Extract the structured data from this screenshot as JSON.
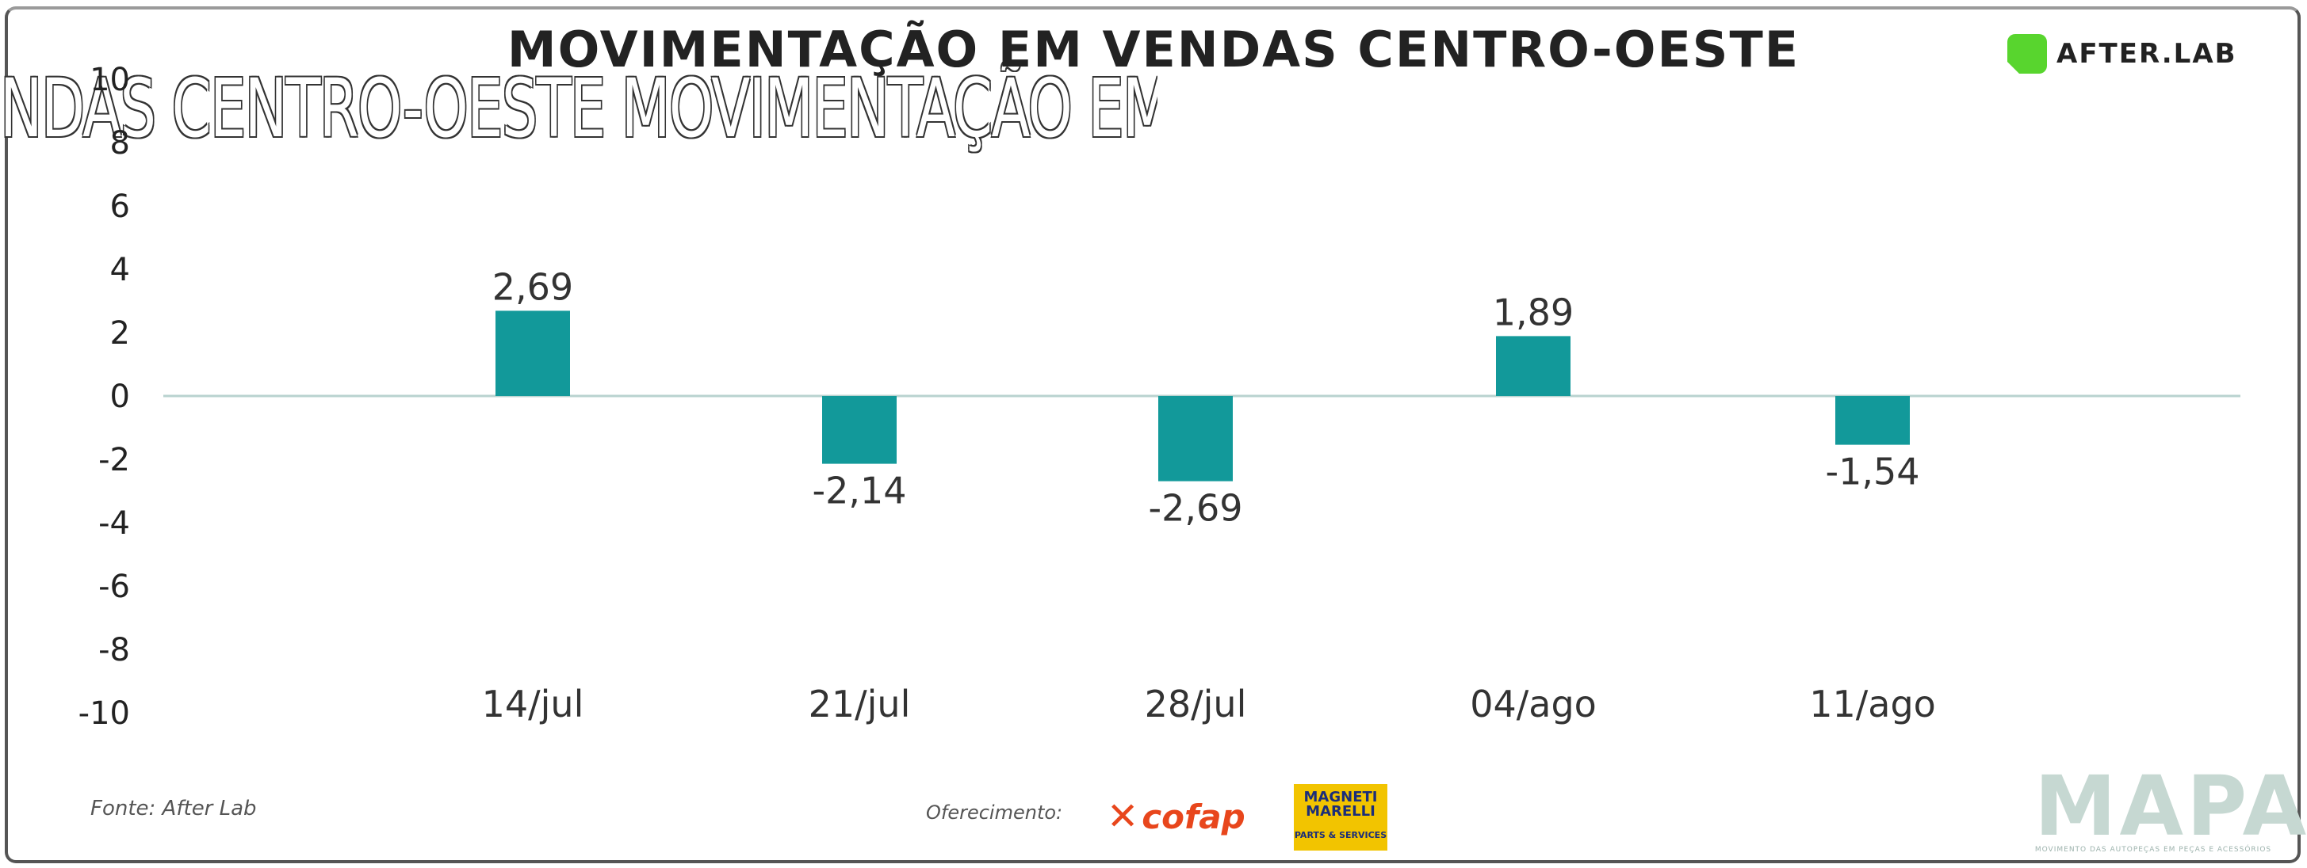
{
  "header": {
    "title": "MOVIMENTAÇÃO EM VENDAS CENTRO-OESTE",
    "ghost_text": "NDAS CENTRO-OESTE MOVIMENTAÇÃO EM VE",
    "brand": "AFTER.LAB",
    "brand_color": "#58d52e"
  },
  "chart_data": {
    "type": "bar",
    "title": "MOVIMENTAÇÃO EM VENDAS CENTRO-OESTE",
    "categories": [
      "14/jul",
      "21/jul",
      "28/jul",
      "04/ago",
      "11/ago"
    ],
    "values": [
      2.69,
      -2.14,
      -2.69,
      1.89,
      -1.54
    ],
    "value_labels": [
      "2,69",
      "-2,14",
      "-2,69",
      "1,89",
      "-1,54"
    ],
    "ylim": [
      -10,
      10
    ],
    "yticks": [
      10,
      8,
      6,
      4,
      2,
      0,
      -2,
      -4,
      -6,
      -8,
      -10
    ],
    "xlabel": "",
    "ylabel": "",
    "bar_color": "#12999a",
    "zero_line_color": "#b9d3cf",
    "grid": false,
    "legend": "none"
  },
  "footer": {
    "source": "Fonte: After Lab",
    "sponsor_label": "Oferecimento:",
    "sponsors": [
      "cofap",
      "MAGNETI MARELLI"
    ],
    "magneti_line1": "MAGNETI",
    "magneti_line2": "MARELLI",
    "magneti_line3": "PARTS & SERVICES",
    "mapa": "MAPA",
    "mapa_tagline": "MOVIMENTO DAS AUTOPEÇAS EM PEÇAS E ACESSÓRIOS"
  },
  "colors": {
    "cofap": "#e8461c",
    "magneti_bg": "#f2c400",
    "mapa": "#c6d8d2"
  }
}
